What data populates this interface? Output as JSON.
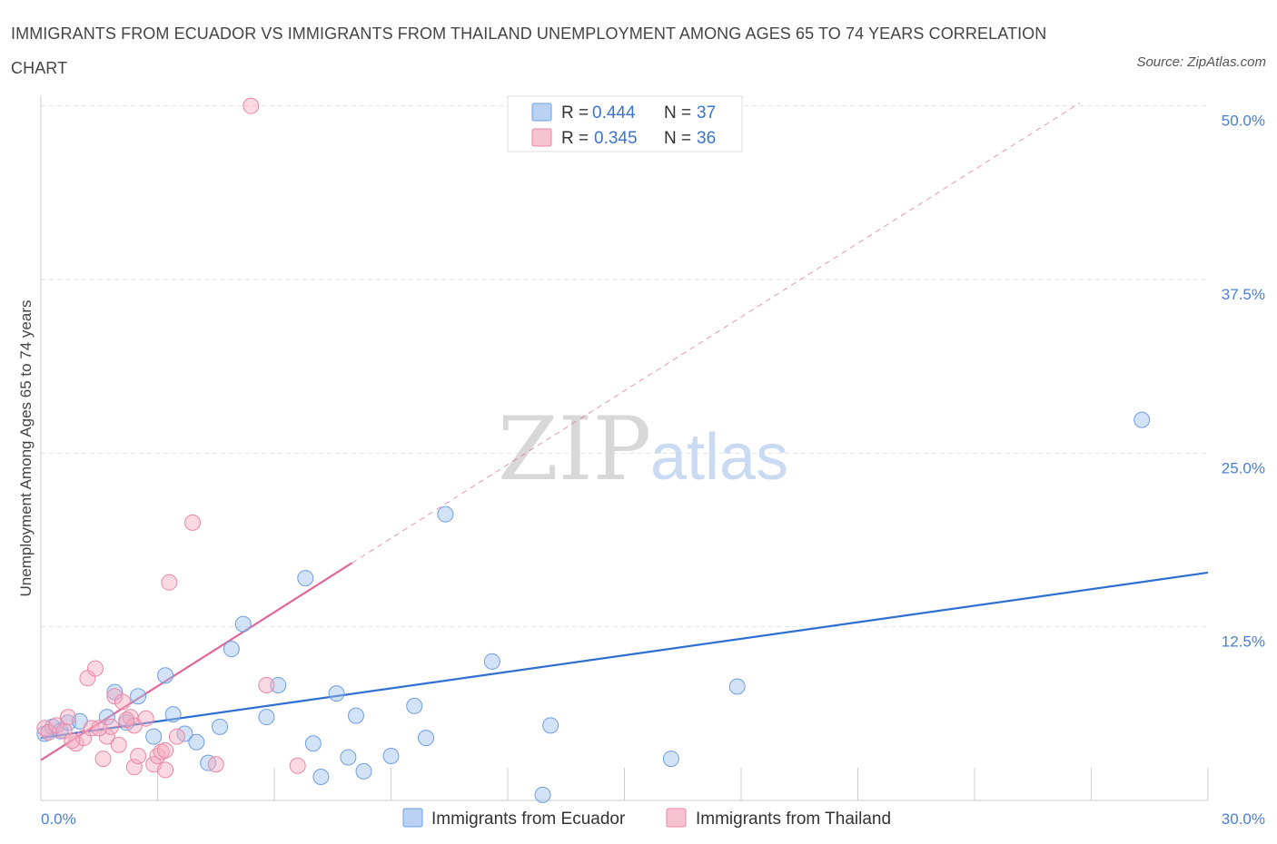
{
  "chart_data": {
    "type": "scatter",
    "title": "IMMIGRANTS FROM ECUADOR VS IMMIGRANTS FROM THAILAND UNEMPLOYMENT AMONG AGES 65 TO 74 YEARS CORRELATION CHART",
    "source": "Source: ZipAtlas.com",
    "xlabel": "",
    "ylabel": "Unemployment Among Ages 65 to 74 years",
    "xlim": [
      0,
      30
    ],
    "ylim": [
      0,
      51
    ],
    "x_tick_labels": {
      "min": "0.0%",
      "max": "30.0%"
    },
    "y_ticks": [
      {
        "value": 12.5,
        "label": "12.5%"
      },
      {
        "value": 25.0,
        "label": "25.0%"
      },
      {
        "value": 37.5,
        "label": "37.5%"
      },
      {
        "value": 50.0,
        "label": "50.0%"
      }
    ],
    "grid": true,
    "watermark": {
      "zip": "ZIP",
      "atlas": "atlas"
    },
    "legend_stats": [
      {
        "r_label": "R =",
        "r_value": "0.444",
        "n_label": "N =",
        "n_value": "37",
        "color": "#9bbfee"
      },
      {
        "r_label": "R =",
        "r_value": "0.345",
        "n_label": "N =",
        "n_value": "36",
        "color": "#f4aac0"
      }
    ],
    "series": [
      {
        "name": "Immigrants from Ecuador",
        "color": "#9bbfee",
        "stroke": "#6f9fe0",
        "trend_color": "#2f6fd0",
        "trend": {
          "x0": 0,
          "y0": 4.5,
          "x1": 30,
          "y1": 16.4
        },
        "points": [
          [
            0.1,
            4.8
          ],
          [
            0.3,
            5.3
          ],
          [
            0.5,
            5.0
          ],
          [
            0.7,
            5.6
          ],
          [
            1.0,
            5.7
          ],
          [
            1.7,
            6.0
          ],
          [
            1.9,
            7.8
          ],
          [
            2.2,
            5.6
          ],
          [
            2.5,
            7.5
          ],
          [
            2.9,
            4.6
          ],
          [
            3.2,
            9.0
          ],
          [
            3.4,
            6.2
          ],
          [
            3.7,
            4.8
          ],
          [
            4.0,
            4.2
          ],
          [
            4.3,
            2.7
          ],
          [
            4.6,
            5.3
          ],
          [
            4.9,
            10.9
          ],
          [
            5.2,
            12.7
          ],
          [
            5.8,
            6.0
          ],
          [
            6.1,
            8.3
          ],
          [
            6.8,
            16.0
          ],
          [
            7.0,
            4.1
          ],
          [
            7.2,
            1.7
          ],
          [
            7.6,
            7.7
          ],
          [
            7.9,
            3.1
          ],
          [
            8.1,
            6.1
          ],
          [
            8.3,
            2.1
          ],
          [
            9.0,
            3.2
          ],
          [
            9.6,
            6.8
          ],
          [
            9.9,
            4.5
          ],
          [
            10.4,
            20.6
          ],
          [
            11.6,
            10.0
          ],
          [
            12.9,
            0.4
          ],
          [
            13.1,
            5.4
          ],
          [
            16.2,
            3.0
          ],
          [
            17.9,
            8.2
          ],
          [
            28.3,
            27.4
          ]
        ]
      },
      {
        "name": "Immigrants from Thailand",
        "color": "#f4aac0",
        "stroke": "#ea87a6",
        "trend_color": "#e0679a",
        "trend": {
          "x0": 0,
          "y0": 2.9,
          "x1": 8.0,
          "y1": 17.1
        },
        "trend_ext": {
          "x0": 8.0,
          "y0": 17.1,
          "x1": 26.7,
          "y1": 50.2
        },
        "points": [
          [
            0.1,
            5.2
          ],
          [
            0.2,
            4.9
          ],
          [
            0.4,
            5.4
          ],
          [
            0.6,
            5.0
          ],
          [
            0.7,
            6.0
          ],
          [
            0.9,
            4.1
          ],
          [
            1.1,
            4.5
          ],
          [
            1.2,
            8.8
          ],
          [
            1.3,
            5.2
          ],
          [
            1.4,
            9.5
          ],
          [
            1.6,
            3.0
          ],
          [
            1.7,
            4.6
          ],
          [
            1.8,
            5.3
          ],
          [
            1.9,
            7.5
          ],
          [
            2.0,
            4.0
          ],
          [
            2.1,
            7.1
          ],
          [
            2.3,
            6.0
          ],
          [
            2.4,
            5.4
          ],
          [
            2.4,
            2.4
          ],
          [
            2.5,
            3.2
          ],
          [
            2.7,
            5.9
          ],
          [
            2.9,
            2.6
          ],
          [
            3.0,
            3.2
          ],
          [
            3.1,
            3.5
          ],
          [
            3.2,
            3.6
          ],
          [
            3.2,
            2.2
          ],
          [
            3.3,
            15.7
          ],
          [
            3.5,
            4.6
          ],
          [
            3.9,
            20.0
          ],
          [
            4.5,
            2.6
          ],
          [
            5.8,
            8.3
          ],
          [
            6.6,
            2.5
          ],
          [
            5.4,
            50.0
          ],
          [
            1.5,
            5.2
          ],
          [
            0.8,
            4.3
          ],
          [
            2.2,
            5.8
          ]
        ]
      }
    ]
  }
}
